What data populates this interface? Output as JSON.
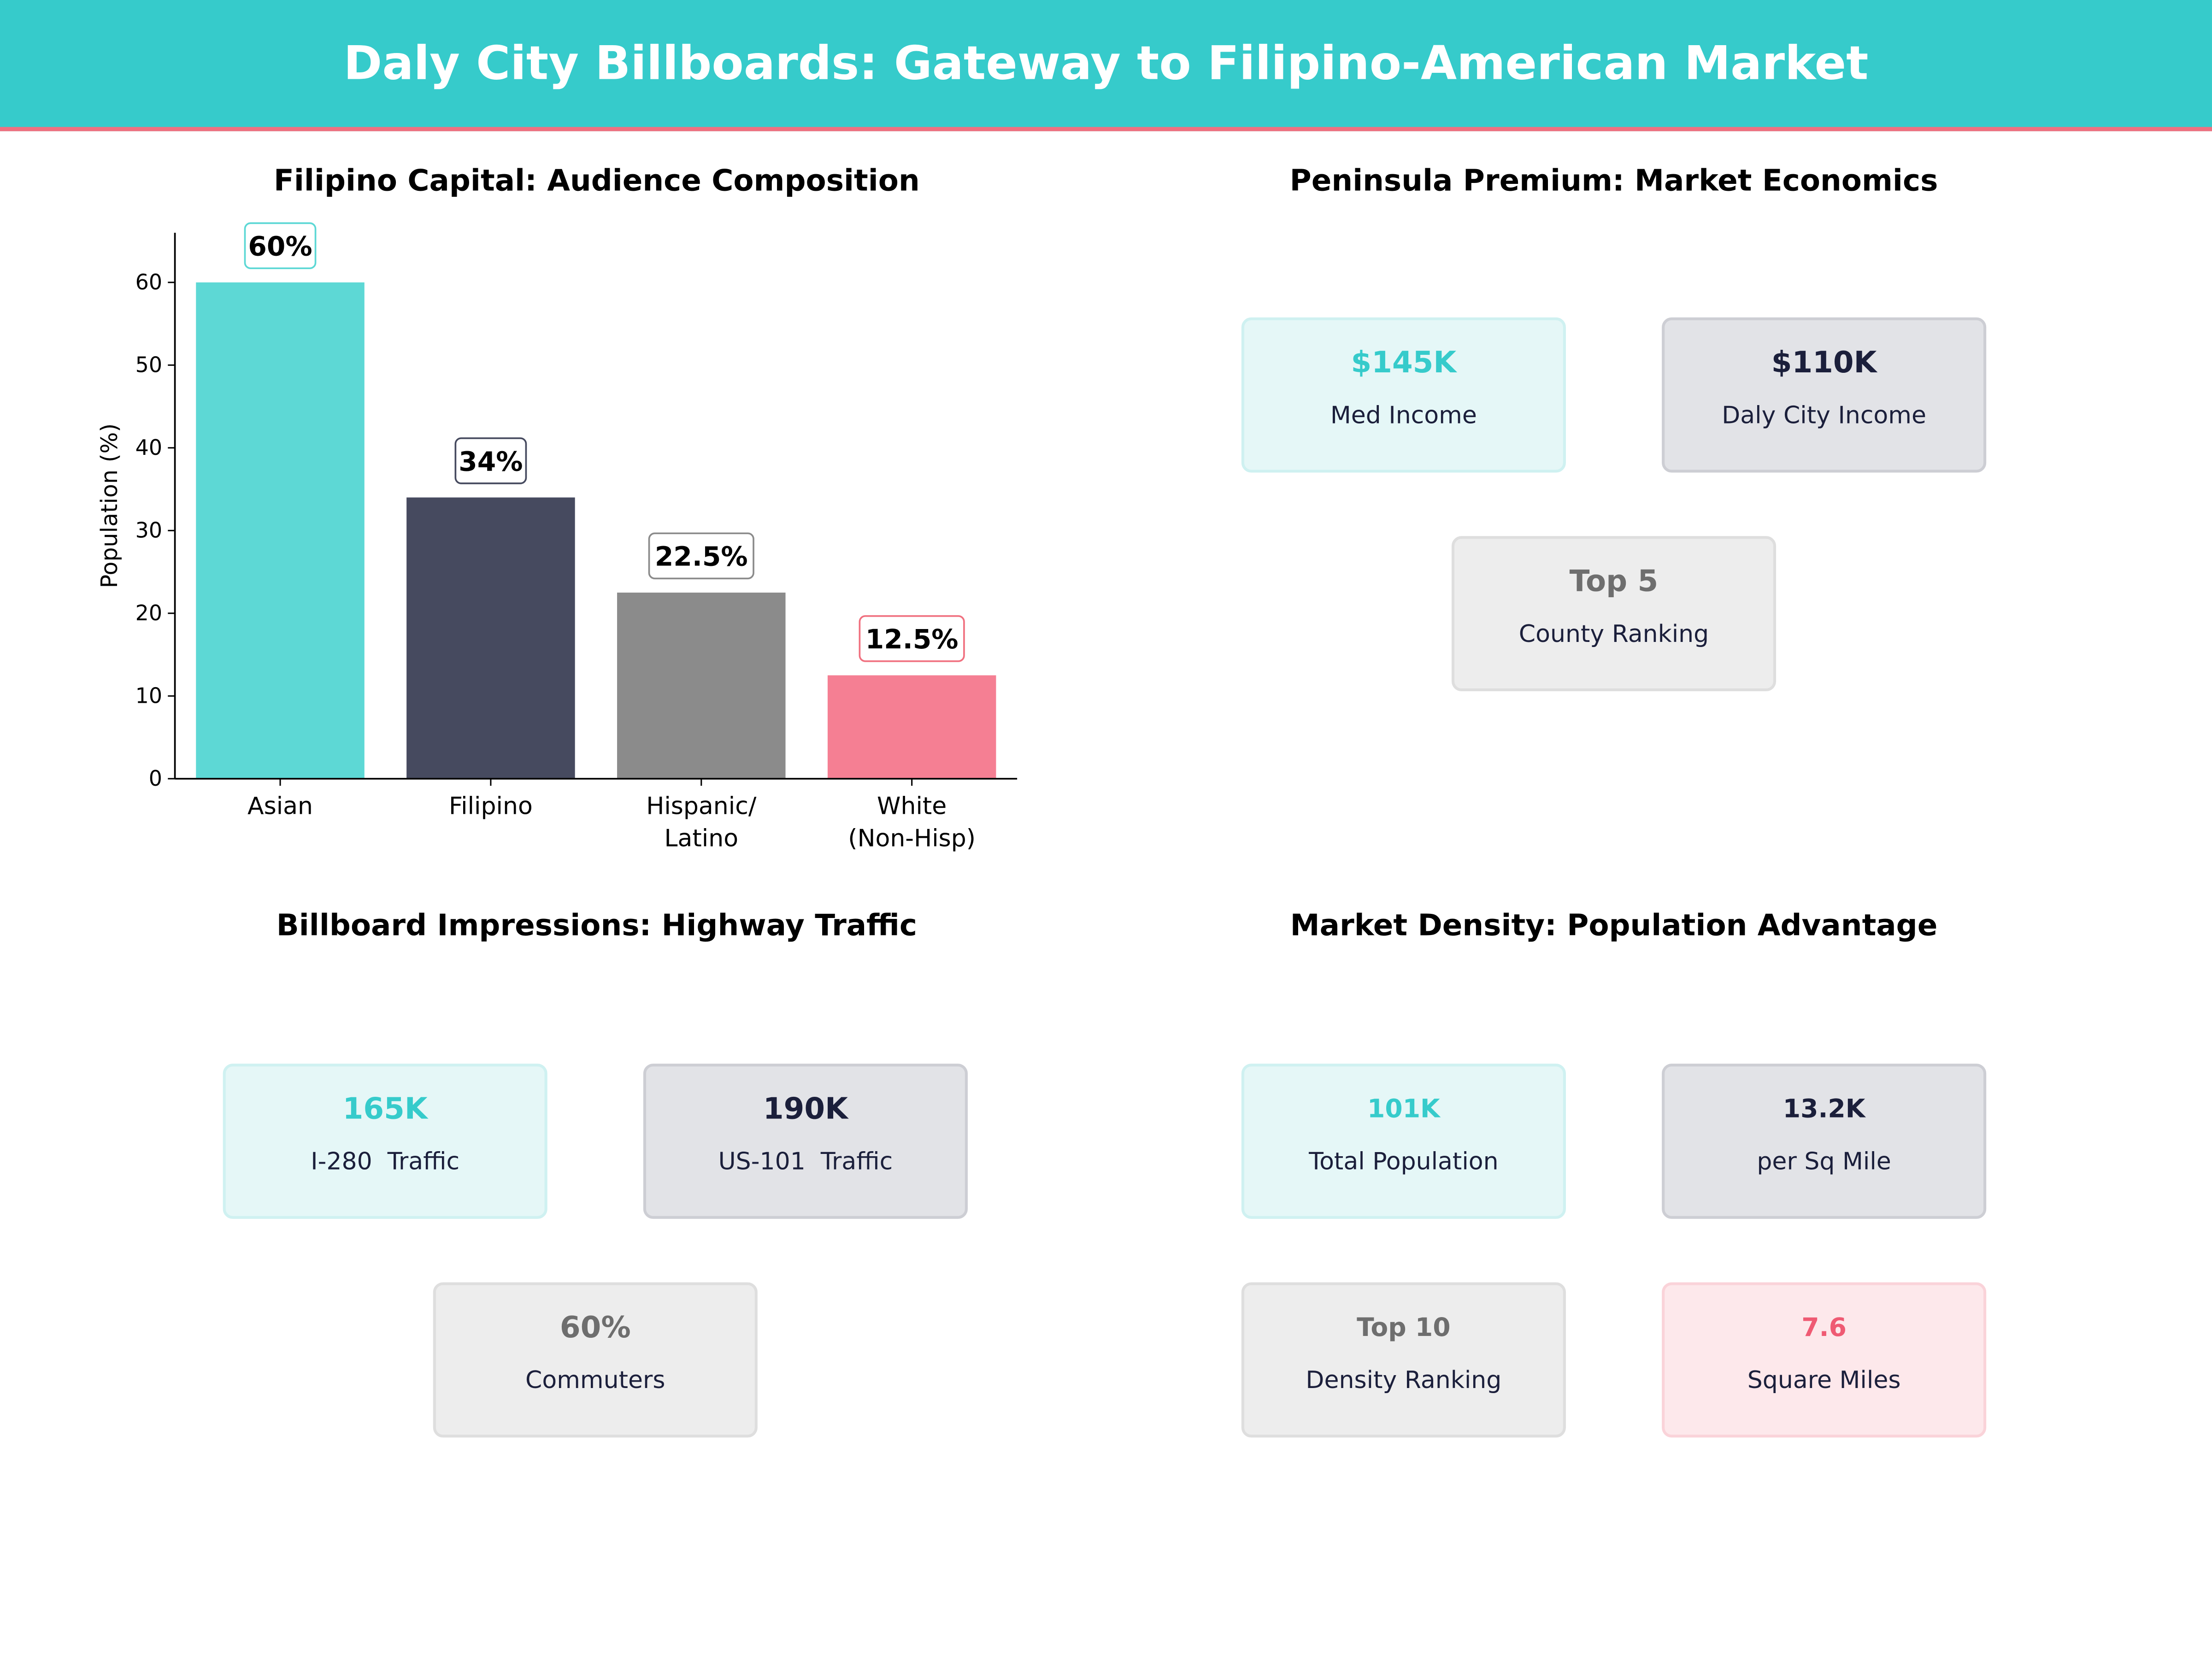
{
  "header": {
    "title": "Daly City Billboards: Gateway to Filipino-American Market"
  },
  "chart_data": {
    "type": "bar",
    "title": "Filipino Capital: Audience Composition",
    "xlabel": "",
    "ylabel": "Population (%)",
    "categories": [
      "Asian",
      "Filipino",
      "Hispanic/\nLatino",
      "White\n(Non-Hisp)"
    ],
    "values": [
      60,
      34,
      22.5,
      12.5
    ],
    "data_labels": [
      "60%",
      "34%",
      "22.5%",
      "12.5%"
    ],
    "colors": [
      "#5DD8D5",
      "#464A5F",
      "#8B8B8B",
      "#F57F93"
    ],
    "label_border_colors": [
      "#5DD8D5",
      "#464A5F",
      "#8B8B8B",
      "#F0707F"
    ],
    "ylim": [
      0,
      66
    ],
    "yticks": [
      0,
      10,
      20,
      30,
      40,
      50,
      60
    ],
    "grid": false
  },
  "panels": {
    "economics": {
      "title": "Peninsula Premium: Market Economics",
      "cards": [
        {
          "value": "$145K",
          "label": "Med Income",
          "style": "teal"
        },
        {
          "value": "$110K",
          "label": "Daly City Income",
          "style": "dark"
        },
        {
          "value": "Top 5",
          "label": "County Ranking",
          "style": "grey"
        }
      ]
    },
    "traffic": {
      "title": "Billboard Impressions: Highway Traffic",
      "cards": [
        {
          "value": "165K",
          "label": "I-280  Traffic",
          "style": "teal"
        },
        {
          "value": "190K",
          "label": "US-101  Traffic",
          "style": "dark"
        },
        {
          "value": "60%",
          "label": "Commuters",
          "style": "grey"
        }
      ]
    },
    "density": {
      "title": "Market Density: Population Advantage",
      "cards": [
        {
          "value": "101K",
          "label": "Total Population",
          "style": "teal"
        },
        {
          "value": "13.2K",
          "label": "per Sq Mile",
          "style": "dark"
        },
        {
          "value": "Top 10",
          "label": "Density Ranking",
          "style": "grey"
        },
        {
          "value": "7.6",
          "label": "Square Miles",
          "style": "pink"
        }
      ]
    }
  }
}
